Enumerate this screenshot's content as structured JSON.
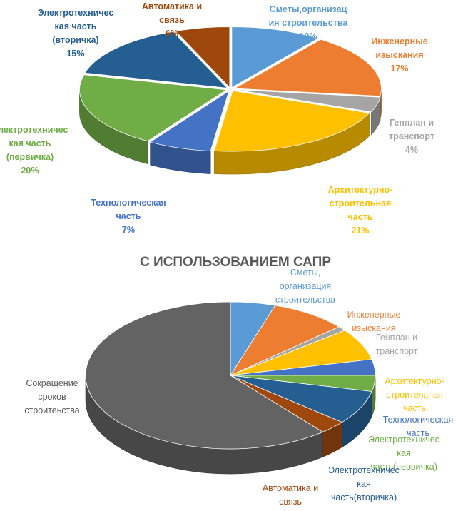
{
  "colors": {
    "smety": "#5b9bd5",
    "inzh": "#ed7d31",
    "genplan": "#a5a5a5",
    "arh": "#ffc000",
    "tech": "#4472c4",
    "el1": "#70ad47",
    "el2": "#255e91",
    "avto": "#9e480e",
    "sokr": "#636363"
  },
  "chart_data": [
    {
      "type": "pie",
      "title": "",
      "style": "3d-exploded",
      "categories": [
        "Сметы,организация строительства",
        "Инженерные изыскания",
        "Генплан и транспорт",
        "Архитектурно-строительная часть",
        "Технологическая часть",
        "Электротехническая часть (первичка)",
        "Электротехническая часть (вторичка)",
        "Автоматика и связь"
      ],
      "values": [
        10,
        17,
        4,
        21,
        7,
        20,
        15,
        6
      ],
      "labels": [
        {
          "lines": [
            "Сметы,организац",
            "ия строительства",
            "10%"
          ],
          "color": "#5b9bd5"
        },
        {
          "lines": [
            "Инженерные",
            "изыскания",
            "17%"
          ],
          "color": "#ed7d31"
        },
        {
          "lines": [
            "Генплан и",
            "транспорт",
            "4%"
          ],
          "color": "#a5a5a5"
        },
        {
          "lines": [
            "Архитектурно-",
            "строительная",
            "часть",
            "21%"
          ],
          "color": "#ffc000"
        },
        {
          "lines": [
            "Технологическая",
            "часть",
            "7%"
          ],
          "color": "#4472c4"
        },
        {
          "lines": [
            "Электротехничес",
            "кая часть",
            "(первичка)",
            "20%"
          ],
          "color": "#70ad47"
        },
        {
          "lines": [
            "Электротехничес",
            "кая часть",
            "(вторичка)",
            "15%"
          ],
          "color": "#255e91"
        },
        {
          "lines": [
            "Автоматика и",
            "связь",
            "6%"
          ],
          "color": "#9e480e"
        }
      ]
    },
    {
      "type": "pie",
      "title": "С ИСПОЛЬЗОВАНИЕМ САПР",
      "style": "3d",
      "categories": [
        "Сметы, организация строительства",
        "Инженерные изыскания",
        "Генплан и транспорт",
        "Архитектурно-строительная часть",
        "Технологическая часть",
        "Электротехническая часть(первичка)",
        "Электротехническая часть(вторичка)",
        "Автоматика и связь",
        "Сокращение сроков строитеьства"
      ],
      "values": [
        5,
        8.5,
        1,
        7,
        3.5,
        3.5,
        7.5,
        3,
        61
      ],
      "labels": [
        {
          "lines": [
            "Сметы,",
            "организация",
            "строительства"
          ],
          "color": "#5b9bd5"
        },
        {
          "lines": [
            "Инженерные",
            "изыскания"
          ],
          "color": "#ed7d31"
        },
        {
          "lines": [
            "Генплан и",
            "транспорт"
          ],
          "color": "#a5a5a5"
        },
        {
          "lines": [
            "Архитектурно-",
            "строительная",
            "часть"
          ],
          "color": "#ffc000"
        },
        {
          "lines": [
            "Технологическая",
            "часть"
          ],
          "color": "#4472c4"
        },
        {
          "lines": [
            "Электротехничес",
            "кая",
            "часть(первичка)"
          ],
          "color": "#70ad47"
        },
        {
          "lines": [
            "Электротехничес",
            "кая",
            "часть(вторичка)"
          ],
          "color": "#255e91"
        },
        {
          "lines": [
            "Автоматика и",
            "связь"
          ],
          "color": "#9e480e"
        },
        {
          "lines": [
            "Сокращение",
            "сроков",
            "строитеьства"
          ],
          "color": "#595959"
        }
      ]
    }
  ]
}
